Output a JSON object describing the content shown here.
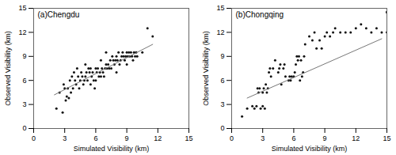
{
  "chart_data": [
    {
      "type": "scatter",
      "xlabel": "Simulated Visibility (km)",
      "ylabel": "Observed Visibility (km)",
      "annotations": [
        "(a)Chengdu"
      ],
      "xlim": [
        0,
        15
      ],
      "ylim": [
        0,
        15
      ],
      "xticks": [
        0,
        3,
        6,
        9,
        12,
        15
      ],
      "yticks": [
        0,
        3,
        6,
        9,
        12,
        15
      ],
      "grid": false,
      "series": [
        {
          "type": "scatter",
          "color": "#111111",
          "marker": "circle",
          "x": [
            2.2,
            2.5,
            2.8,
            2.9,
            3.0,
            3.1,
            3.2,
            3.3,
            3.4,
            3.5,
            3.6,
            3.7,
            3.8,
            3.9,
            4.0,
            4.1,
            4.2,
            4.3,
            4.4,
            4.5,
            4.6,
            4.7,
            4.8,
            4.9,
            5.0,
            5.0,
            5.1,
            5.2,
            5.3,
            5.4,
            5.5,
            5.5,
            5.6,
            5.7,
            5.8,
            5.9,
            6.0,
            6.0,
            6.1,
            6.2,
            6.3,
            6.4,
            6.5,
            6.5,
            6.6,
            6.7,
            6.8,
            6.9,
            7.0,
            7.0,
            7.1,
            7.2,
            7.3,
            7.4,
            7.5,
            7.6,
            7.7,
            7.8,
            7.9,
            8.0,
            8.0,
            8.1,
            8.2,
            8.3,
            8.4,
            8.5,
            8.6,
            8.7,
            8.8,
            8.9,
            9.0,
            9.0,
            9.1,
            9.2,
            9.3,
            9.4,
            9.5,
            9.6,
            9.7,
            9.8,
            9.9,
            10.0,
            10.5,
            11.0,
            11.5
          ],
          "values": [
            2.5,
            4.5,
            2.0,
            5.5,
            5.0,
            3.5,
            4.0,
            5.0,
            3.8,
            6.0,
            4.5,
            6.5,
            5.0,
            7.0,
            6.0,
            5.5,
            7.5,
            6.5,
            5.0,
            6.0,
            7.0,
            6.5,
            5.5,
            6.0,
            6.5,
            8.0,
            7.0,
            6.0,
            7.5,
            7.0,
            5.5,
            7.5,
            6.5,
            7.0,
            6.0,
            5.0,
            7.5,
            6.0,
            7.0,
            7.5,
            6.5,
            7.0,
            6.5,
            8.5,
            7.5,
            7.0,
            6.5,
            7.5,
            8.0,
            9.5,
            7.5,
            8.0,
            7.5,
            8.5,
            7.5,
            9.0,
            8.5,
            8.0,
            8.5,
            9.0,
            7.0,
            8.5,
            9.5,
            8.0,
            8.5,
            9.0,
            9.5,
            9.0,
            8.5,
            9.0,
            9.5,
            8.0,
            9.0,
            9.5,
            9.0,
            9.5,
            9.0,
            8.5,
            9.5,
            9.0,
            9.5,
            9.0,
            9.5,
            12.5,
            11.5
          ]
        },
        {
          "type": "line",
          "color": "#777777",
          "line_style": "solid",
          "x": [
            2.0,
            11.5
          ],
          "values": [
            4.2,
            10.5
          ]
        }
      ]
    },
    {
      "type": "scatter",
      "xlabel": "Simulated Visibility (km)",
      "ylabel": "Observed Visibility (km)",
      "annotations": [
        "(b)Chongqing"
      ],
      "xlim": [
        0,
        15
      ],
      "ylim": [
        0,
        15
      ],
      "xticks": [
        0,
        3,
        6,
        9,
        12,
        15
      ],
      "yticks": [
        0,
        3,
        6,
        9,
        12,
        15
      ],
      "grid": false,
      "series": [
        {
          "type": "scatter",
          "color": "#111111",
          "marker": "circle",
          "x": [
            1.0,
            1.5,
            2.0,
            2.2,
            2.4,
            2.5,
            2.6,
            2.7,
            2.8,
            3.0,
            3.0,
            3.1,
            3.2,
            3.3,
            3.4,
            3.5,
            3.6,
            3.7,
            3.8,
            4.0,
            4.2,
            4.5,
            4.6,
            4.7,
            4.8,
            5.0,
            5.1,
            5.2,
            5.5,
            5.6,
            5.7,
            5.8,
            6.0,
            6.1,
            6.2,
            6.3,
            6.4,
            6.5,
            6.6,
            6.7,
            6.8,
            6.9,
            7.0,
            7.1,
            7.5,
            7.8,
            8.0,
            8.2,
            8.5,
            8.7,
            9.0,
            9.2,
            9.5,
            9.8,
            10.0,
            10.5,
            11.0,
            11.5,
            12.0,
            12.5,
            13.0,
            13.5,
            14.0,
            14.5,
            15.0,
            15.0,
            15.0
          ],
          "values": [
            1.5,
            2.5,
            2.8,
            2.5,
            2.8,
            5.0,
            4.5,
            5.0,
            2.5,
            2.8,
            4.5,
            5.0,
            2.5,
            5.5,
            4.5,
            5.0,
            7.0,
            7.5,
            6.5,
            7.5,
            8.5,
            7.0,
            7.5,
            8.0,
            5.5,
            7.5,
            8.0,
            6.5,
            6.0,
            6.5,
            6.0,
            6.5,
            6.5,
            7.0,
            8.0,
            9.0,
            8.5,
            9.0,
            6.0,
            8.5,
            6.5,
            7.0,
            9.0,
            10.5,
            11.5,
            11.0,
            12.0,
            10.0,
            11.0,
            10.0,
            11.5,
            12.0,
            11.5,
            12.0,
            12.5,
            12.0,
            12.0,
            12.0,
            12.5,
            13.0,
            12.5,
            12.0,
            12.5,
            12.0,
            14.5,
            12.0,
            14.5
          ]
        },
        {
          "type": "line",
          "color": "#777777",
          "line_style": "solid",
          "x": [
            1.5,
            14.5
          ],
          "values": [
            3.8,
            11.2
          ]
        }
      ]
    }
  ]
}
